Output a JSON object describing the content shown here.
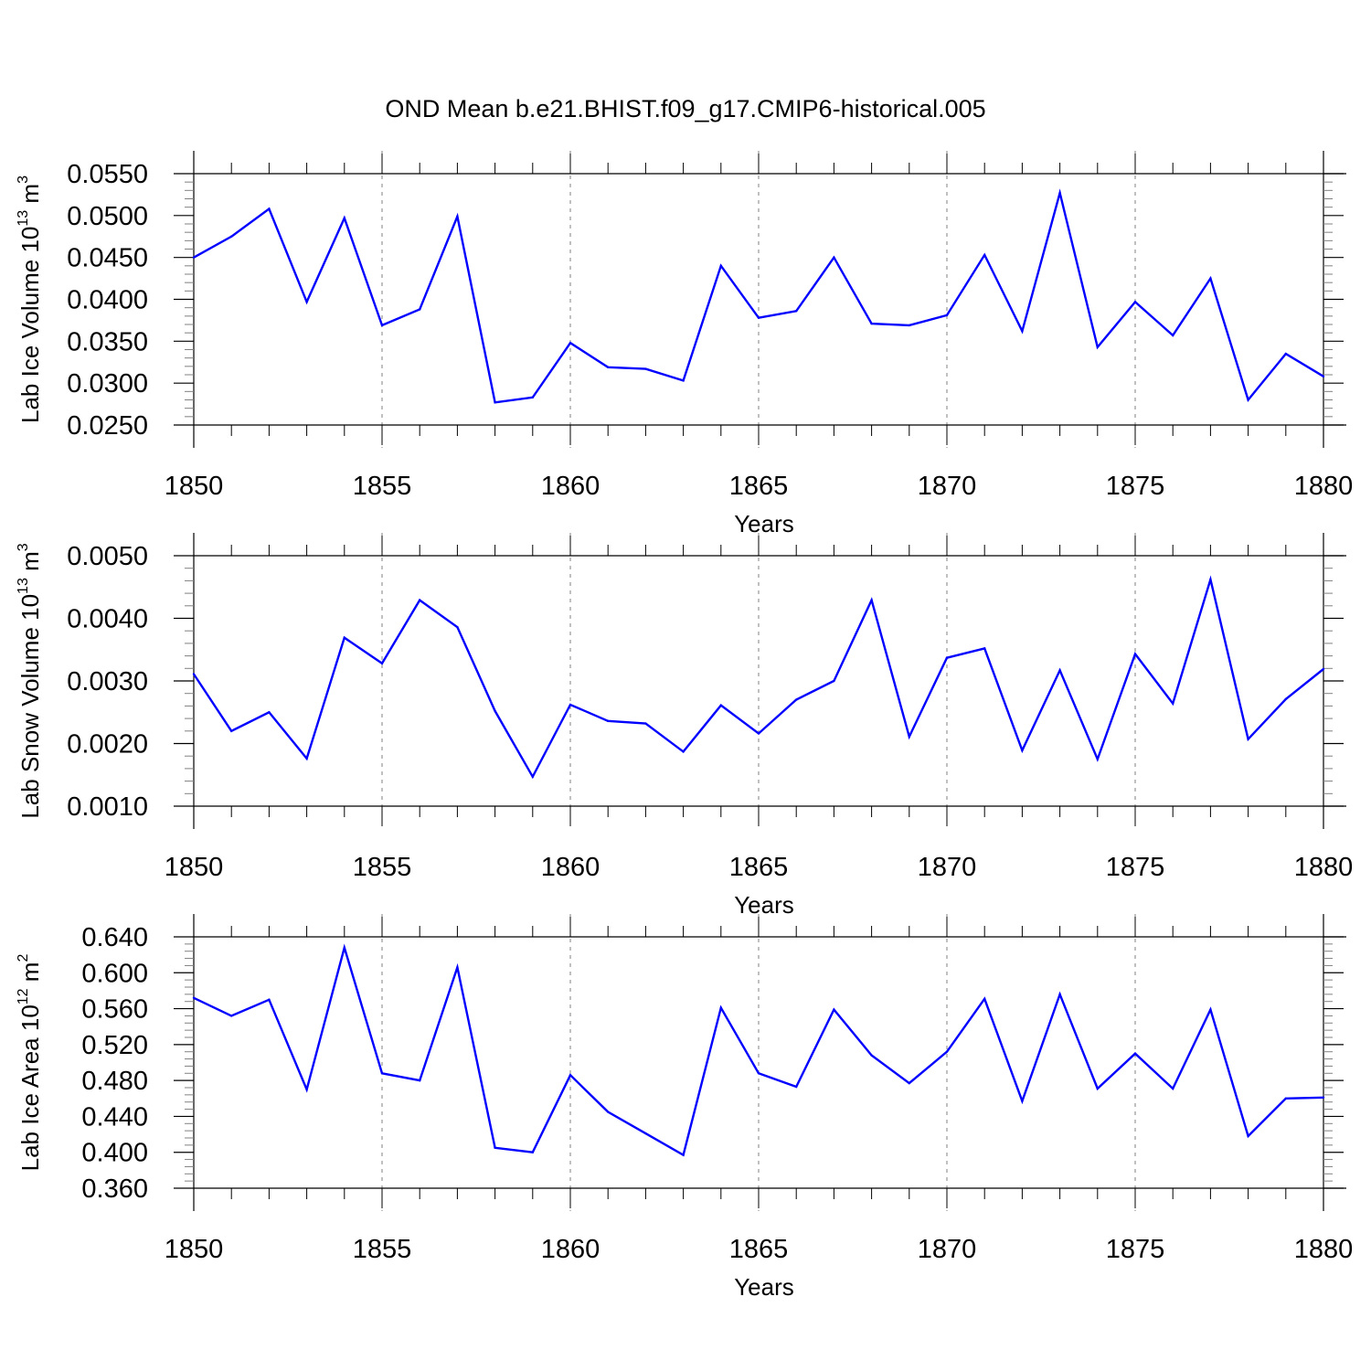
{
  "title": "OND Mean b.e21.BHIST.f09_g17.CMIP6-historical.005",
  "colors": {
    "line": "#0000ff",
    "axis": "#000000",
    "grid": "#808080"
  },
  "chart_data": [
    {
      "type": "line",
      "xlabel": "Years",
      "ylabel": {
        "text": "Lab Ice Volume 10",
        "exp": "13",
        "unit": " m",
        "unit_exp": "3"
      },
      "xlim": [
        1850,
        1880
      ],
      "ylim": [
        0.025,
        0.055
      ],
      "x_ticks": [
        "1850",
        "1855",
        "1860",
        "1865",
        "1870",
        "1875",
        "1880"
      ],
      "y_ticks": [
        "0.0250",
        "0.0300",
        "0.0350",
        "0.0400",
        "0.0450",
        "0.0500",
        "0.0550"
      ],
      "grid": "vertical dashed at major x ticks",
      "x": [
        1850,
        1851,
        1852,
        1853,
        1854,
        1855,
        1856,
        1857,
        1858,
        1859,
        1860,
        1861,
        1862,
        1863,
        1864,
        1865,
        1866,
        1867,
        1868,
        1869,
        1870,
        1871,
        1872,
        1873,
        1874,
        1875,
        1876,
        1877,
        1878,
        1879,
        1880
      ],
      "values": [
        0.045,
        0.0475,
        0.0508,
        0.0397,
        0.0497,
        0.0369,
        0.0388,
        0.0499,
        0.0277,
        0.0283,
        0.0348,
        0.0319,
        0.0317,
        0.0303,
        0.044,
        0.0378,
        0.0386,
        0.045,
        0.0371,
        0.0369,
        0.0381,
        0.0453,
        0.0362,
        0.0527,
        0.0343,
        0.0397,
        0.0357,
        0.0425,
        0.028,
        0.0335,
        0.0308
      ]
    },
    {
      "type": "line",
      "xlabel": "Years",
      "ylabel": {
        "text": "Lab Snow Volume 10",
        "exp": "13",
        "unit": " m",
        "unit_exp": "3"
      },
      "xlim": [
        1850,
        1880
      ],
      "ylim": [
        0.001,
        0.005
      ],
      "x_ticks": [
        "1850",
        "1855",
        "1860",
        "1865",
        "1870",
        "1875",
        "1880"
      ],
      "y_ticks": [
        "0.0010",
        "0.0020",
        "0.0030",
        "0.0040",
        "0.0050"
      ],
      "grid": "vertical dashed at major x ticks",
      "x": [
        1850,
        1851,
        1852,
        1853,
        1854,
        1855,
        1856,
        1857,
        1858,
        1859,
        1860,
        1861,
        1862,
        1863,
        1864,
        1865,
        1866,
        1867,
        1868,
        1869,
        1870,
        1871,
        1872,
        1873,
        1874,
        1875,
        1876,
        1877,
        1878,
        1879,
        1880
      ],
      "values": [
        0.00311,
        0.0022,
        0.0025,
        0.00176,
        0.00369,
        0.00328,
        0.00429,
        0.00386,
        0.00252,
        0.00147,
        0.00262,
        0.00236,
        0.00232,
        0.00187,
        0.00261,
        0.00216,
        0.0027,
        0.003,
        0.00429,
        0.00211,
        0.00337,
        0.00352,
        0.00189,
        0.00317,
        0.00175,
        0.00343,
        0.00264,
        0.00462,
        0.00207,
        0.00271,
        0.00319
      ]
    },
    {
      "type": "line",
      "xlabel": "Years",
      "ylabel": {
        "text": "Lab Ice Area 10",
        "exp": "12",
        "unit": " m",
        "unit_exp": "2"
      },
      "xlim": [
        1850,
        1880
      ],
      "ylim": [
        0.36,
        0.64
      ],
      "x_ticks": [
        "1850",
        "1855",
        "1860",
        "1865",
        "1870",
        "1875",
        "1880"
      ],
      "y_ticks": [
        "0.360",
        "0.400",
        "0.440",
        "0.480",
        "0.520",
        "0.560",
        "0.600",
        "0.640"
      ],
      "grid": "vertical dashed at major x ticks",
      "x": [
        1850,
        1851,
        1852,
        1853,
        1854,
        1855,
        1856,
        1857,
        1858,
        1859,
        1860,
        1861,
        1862,
        1863,
        1864,
        1865,
        1866,
        1867,
        1868,
        1869,
        1870,
        1871,
        1872,
        1873,
        1874,
        1875,
        1876,
        1877,
        1878,
        1879,
        1880
      ],
      "values": [
        0.572,
        0.552,
        0.57,
        0.47,
        0.628,
        0.488,
        0.48,
        0.606,
        0.405,
        0.4,
        0.486,
        0.445,
        0.421,
        0.397,
        0.561,
        0.488,
        0.473,
        0.559,
        0.508,
        0.477,
        0.512,
        0.571,
        0.457,
        0.576,
        0.471,
        0.51,
        0.471,
        0.559,
        0.418,
        0.46,
        0.461
      ]
    }
  ]
}
